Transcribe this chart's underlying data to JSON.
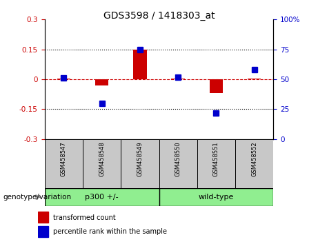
{
  "title": "GDS3598 / 1418303_at",
  "samples": [
    "GSM458547",
    "GSM458548",
    "GSM458549",
    "GSM458550",
    "GSM458551",
    "GSM458552"
  ],
  "red_values": [
    0.002,
    -0.03,
    0.148,
    0.003,
    -0.07,
    0.005
  ],
  "blue_values_pct": [
    51,
    30,
    75,
    52,
    22,
    58
  ],
  "group1_label": "p300 +/-",
  "group1_samples": 3,
  "group2_label": "wild-type",
  "group2_samples": 3,
  "group_prefix": "genotype/variation",
  "ylim_left": [
    -0.3,
    0.3
  ],
  "ylim_right": [
    0,
    100
  ],
  "yticks_left": [
    -0.3,
    -0.15,
    0.0,
    0.15,
    0.3
  ],
  "yticks_right": [
    0,
    25,
    50,
    75,
    100
  ],
  "dotted_lines": [
    -0.15,
    0.15
  ],
  "red_color": "#CC0000",
  "blue_color": "#0000CC",
  "bar_width": 0.35,
  "blue_marker_size": 6,
  "left_yaxis_color": "#CC0000",
  "right_yaxis_color": "#0000CC",
  "background_label": "#C8C8C8",
  "background_group": "#90EE90",
  "hline_color": "#CC0000",
  "legend_red_label": "transformed count",
  "legend_blue_label": "percentile rank within the sample",
  "title_fontsize": 10,
  "tick_fontsize": 7.5,
  "sample_fontsize": 6,
  "group_fontsize": 8,
  "legend_fontsize": 7,
  "prefix_fontsize": 7.5
}
